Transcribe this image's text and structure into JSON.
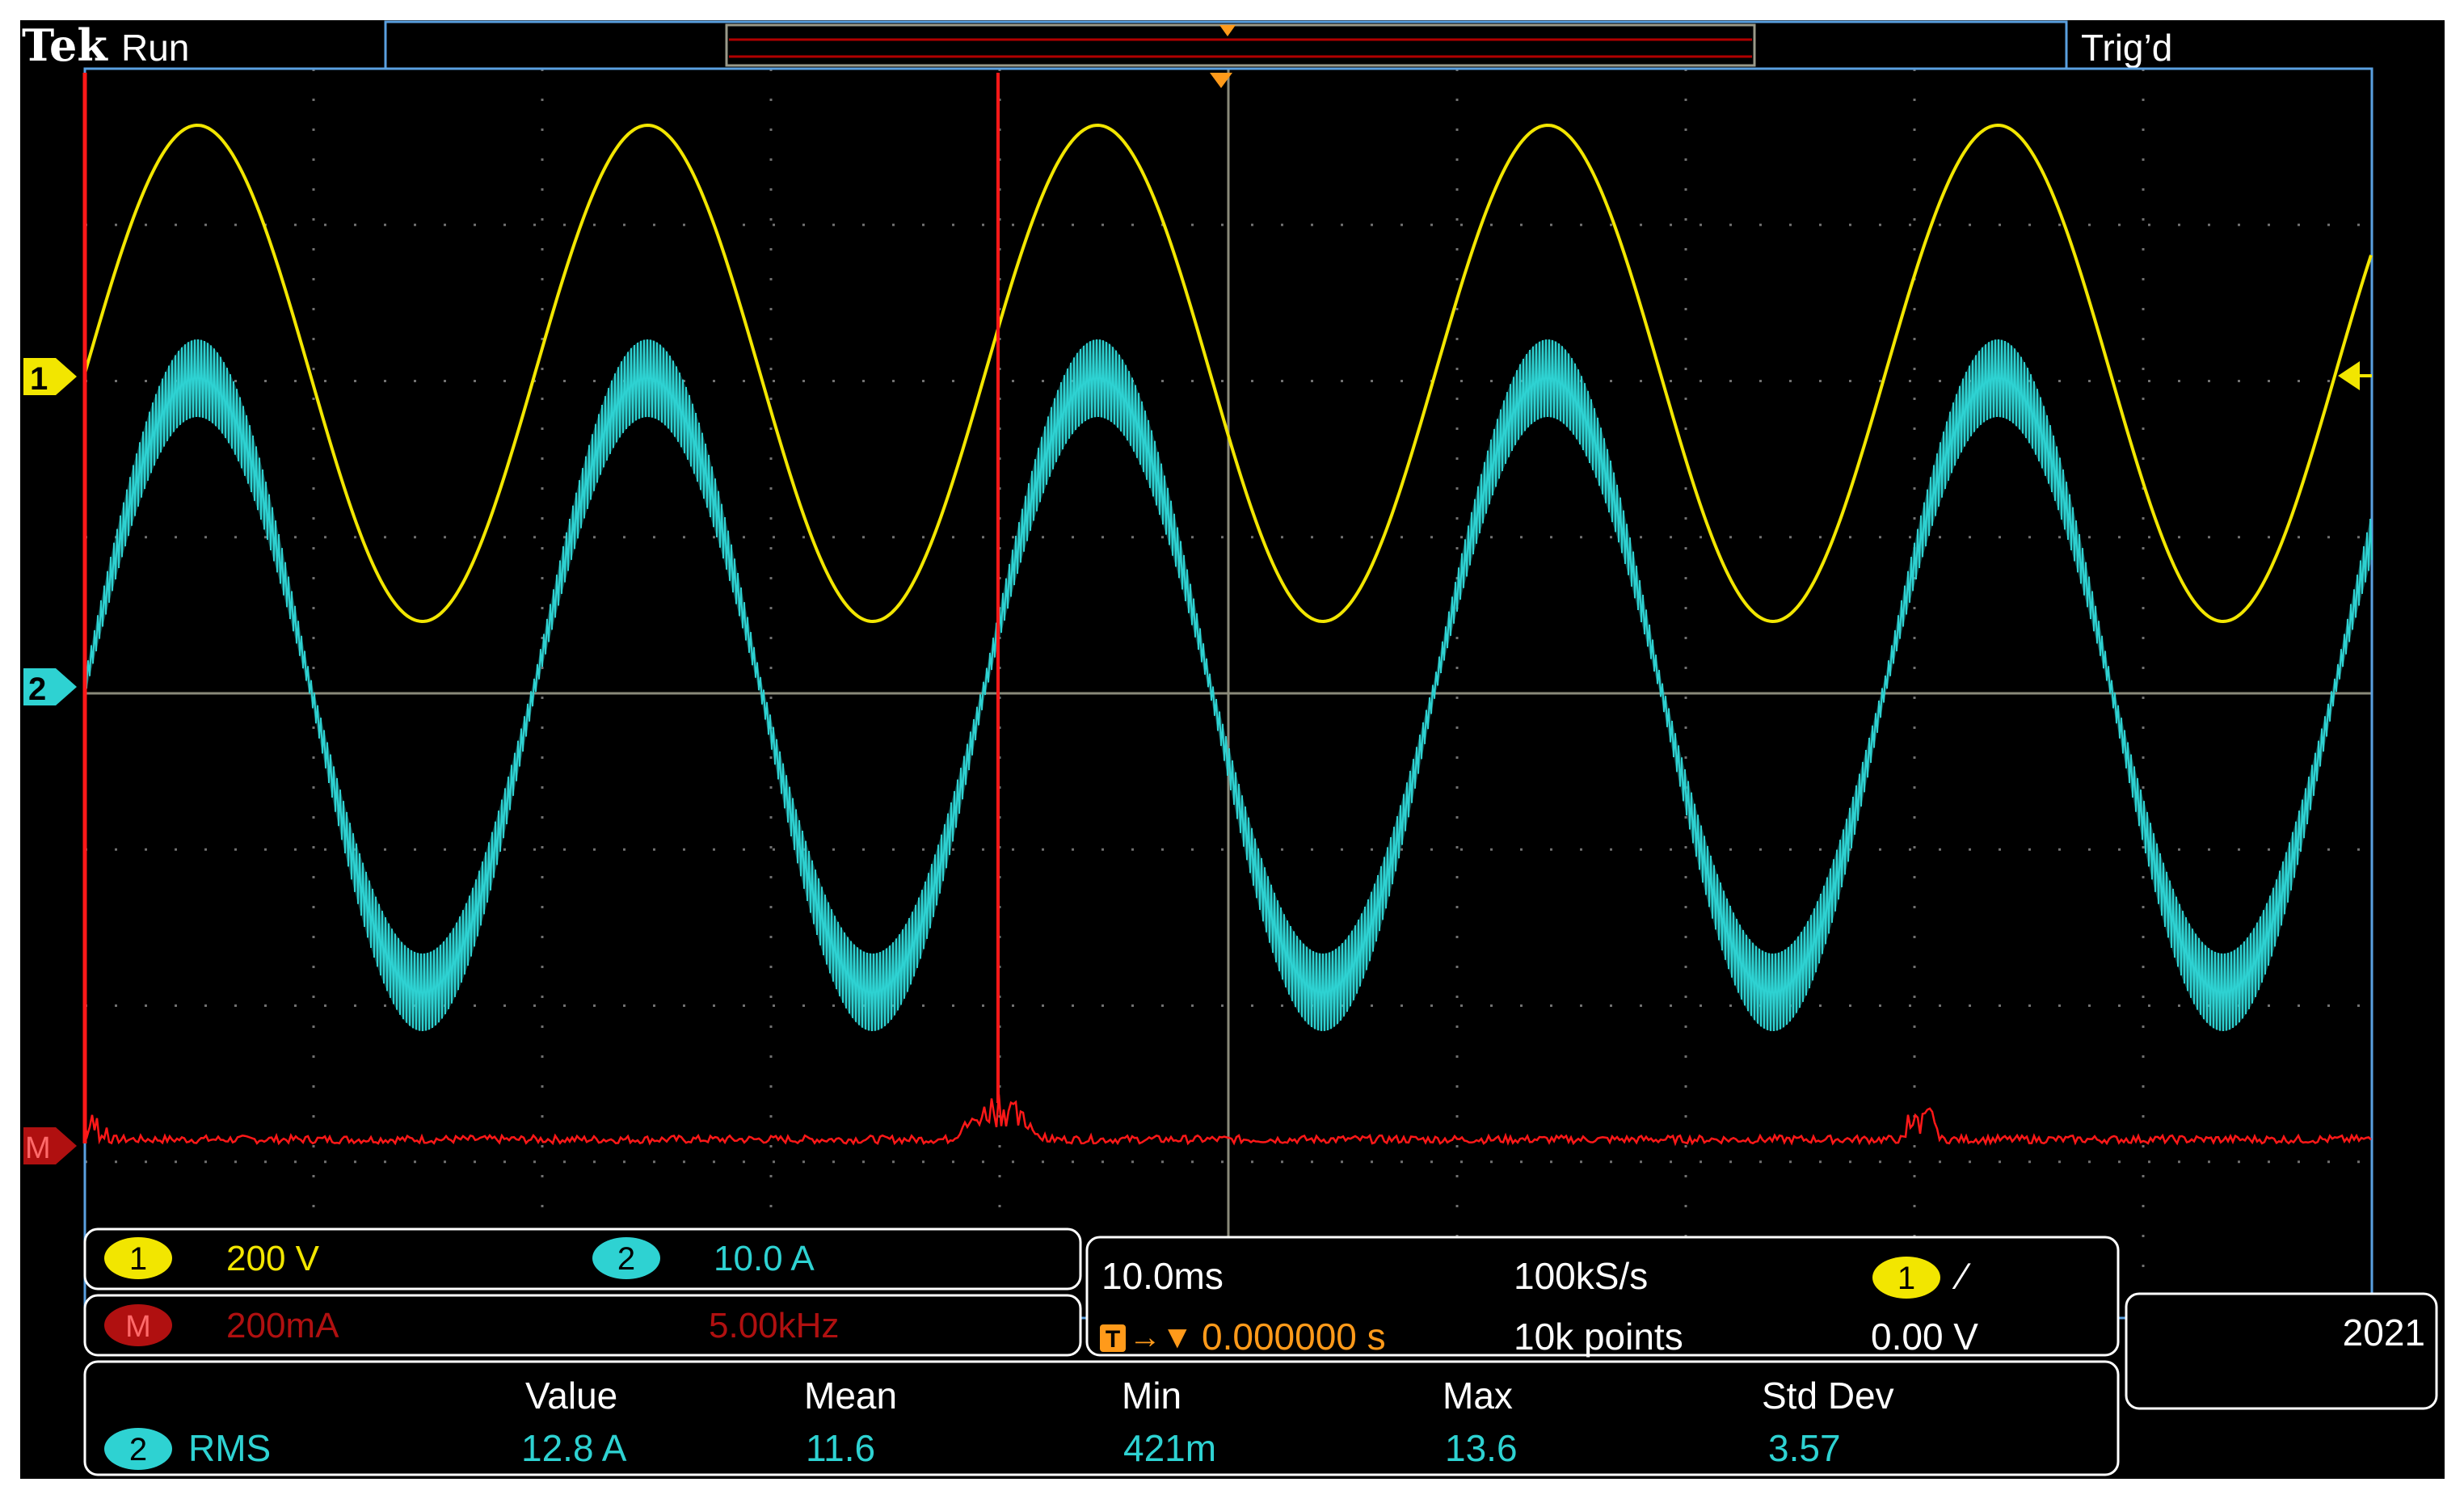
{
  "header": {
    "brand": "Tek",
    "run_state": "Run",
    "trigger_status": "Trig’d"
  },
  "markers": {
    "ch1": "1",
    "ch2": "2",
    "math": "M"
  },
  "colors": {
    "ch1": "#f2e600",
    "ch2": "#2ed2d2",
    "math": "#ff1818",
    "math_badge": "#b01010",
    "trigger": "#ff9a1a",
    "border": "#5aa0e0",
    "grid": "#8a8a8a",
    "text": "#ffffff"
  },
  "channels": {
    "ch1": {
      "badge": "1",
      "scale": "200 V"
    },
    "ch2": {
      "badge": "2",
      "scale": "10.0 A"
    },
    "math": {
      "badge": "M",
      "scale": "200mA",
      "span": "5.00kHz"
    }
  },
  "timebase": {
    "time_per_div": "10.0ms",
    "sample_rate": "100kS/s",
    "record_length": "10k points",
    "trigger_icon": "T",
    "trigger_arrow": "→▼",
    "trigger_delay": "0.000000 s",
    "trigger_source": "1",
    "trigger_slope": "∕",
    "trigger_level": "0.00 V"
  },
  "year": "2021",
  "measurements": {
    "headers": [
      "Value",
      "Mean",
      "Min",
      "Max",
      "Std Dev"
    ],
    "rows": [
      {
        "source": "2",
        "type": "RMS",
        "values": [
          "12.8 A",
          "11.6",
          "421m",
          "13.6",
          "3.57"
        ]
      }
    ]
  },
  "icons": {
    "trigger_position": "triangle-down-marker",
    "trigger_level": "triangle-left-marker",
    "slope": "rising-edge-icon"
  }
}
